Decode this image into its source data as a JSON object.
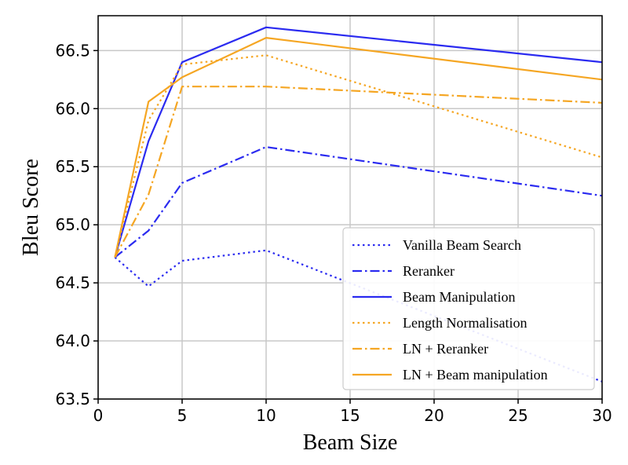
{
  "chart_data": {
    "type": "line",
    "title": "",
    "xlabel": "Beam Size",
    "ylabel": "Bleu Score",
    "xlim": [
      0,
      30
    ],
    "ylim": [
      63.5,
      66.8
    ],
    "xticks": [
      0,
      5,
      10,
      15,
      20,
      25,
      30
    ],
    "yticks": [
      63.5,
      64.0,
      64.5,
      65.0,
      65.5,
      66.0,
      66.5
    ],
    "grid": true,
    "legend_position": "bottom-right",
    "colors": {
      "blue": "#2b2bf0",
      "orange": "#f5a623"
    },
    "x": [
      1,
      3,
      5,
      10,
      30
    ],
    "series": [
      {
        "name": "Vanilla Beam Search",
        "color": "blue",
        "style": "dotted",
        "values": [
          64.72,
          64.47,
          64.69,
          64.78,
          63.65
        ]
      },
      {
        "name": "Reranker",
        "color": "blue",
        "style": "dashdot",
        "values": [
          64.72,
          64.95,
          65.36,
          65.67,
          65.25
        ]
      },
      {
        "name": "Beam Manipulation",
        "color": "blue",
        "style": "solid",
        "values": [
          64.72,
          65.72,
          66.4,
          66.7,
          66.4
        ]
      },
      {
        "name": "Length Normalisation",
        "color": "orange",
        "style": "dotted",
        "values": [
          64.72,
          65.9,
          66.38,
          66.46,
          65.58
        ]
      },
      {
        "name": "LN + Reranker",
        "color": "orange",
        "style": "dashdot",
        "values": [
          64.72,
          65.26,
          66.19,
          66.19,
          66.05
        ]
      },
      {
        "name": "LN + Beam manipulation",
        "color": "orange",
        "style": "solid",
        "values": [
          64.72,
          66.06,
          66.27,
          66.61,
          66.25
        ]
      }
    ]
  }
}
